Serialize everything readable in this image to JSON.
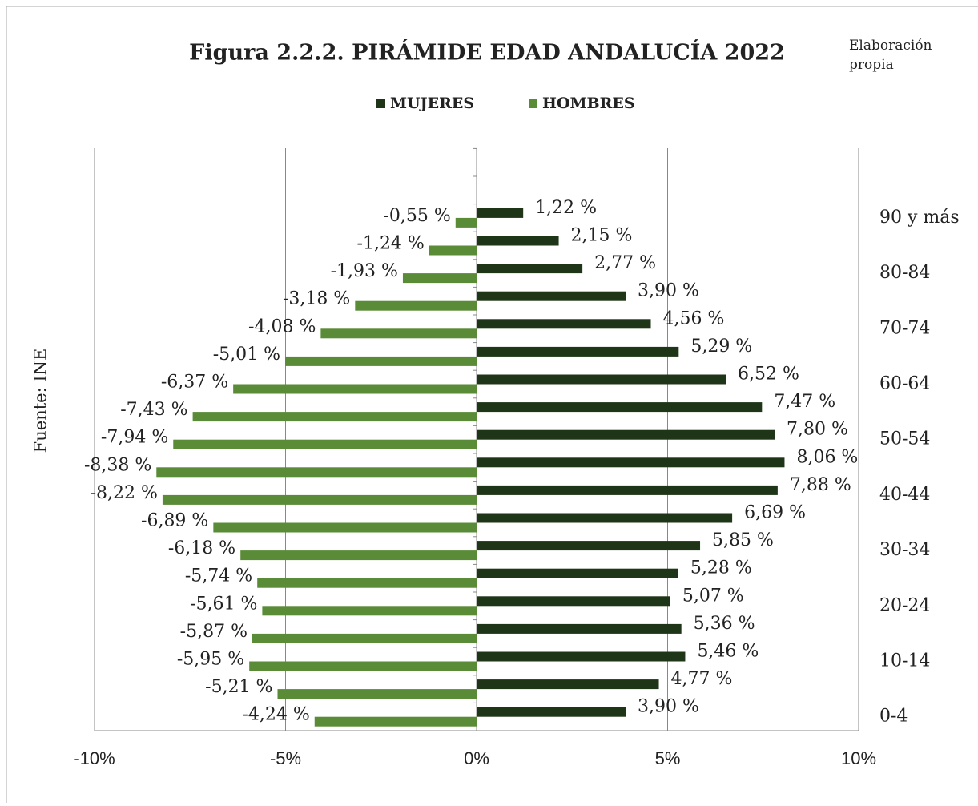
{
  "chart_data": {
    "type": "bar",
    "orientation": "horizontal",
    "title": "Figura 2.2.2. PIRÁMIDE EDAD ANDALUCÍA 2022",
    "note": "Elaboración propia",
    "y_label": "Fuente: INE",
    "categories": [
      "0-4",
      null,
      "10-14",
      null,
      "20-24",
      null,
      "30-34",
      null,
      "40-44",
      null,
      "50-54",
      null,
      "60-64",
      null,
      "70-74",
      null,
      "80-84",
      null,
      "90 y más"
    ],
    "series": [
      {
        "name": "MUJERES",
        "color": "#1f3517",
        "values": [
          3.9,
          4.77,
          5.46,
          5.36,
          5.07,
          5.28,
          5.85,
          6.69,
          7.88,
          8.06,
          7.8,
          7.47,
          6.52,
          5.29,
          4.56,
          3.9,
          2.77,
          2.15,
          1.22
        ],
        "value_labels": [
          "3,90 %",
          "4,77 %",
          "5,46 %",
          "5,36 %",
          "5,07 %",
          "5,28 %",
          "5,85 %",
          "6,69 %",
          "7,88 %",
          "8,06 %",
          "7,80 %",
          "7,47 %",
          "6,52 %",
          "5,29 %",
          "4,56 %",
          "3,90 %",
          "2,77 %",
          "2,15 %",
          "1,22 %"
        ]
      },
      {
        "name": "HOMBRES",
        "color": "#5a8c38",
        "values": [
          -4.24,
          -5.21,
          -5.95,
          -5.87,
          -5.61,
          -5.74,
          -6.18,
          -6.89,
          -8.22,
          -8.38,
          -7.94,
          -7.43,
          -6.37,
          -5.01,
          -4.08,
          -3.18,
          -1.93,
          -1.24,
          -0.55
        ],
        "value_labels": [
          "-4,24 %",
          "-5,21 %",
          "-5,95 %",
          "-5,87 %",
          "-5,61 %",
          "-5,74 %",
          "-6,18 %",
          "-6,89 %",
          "-8,22 %",
          "-8,38 %",
          "-7,94 %",
          "-7,43 %",
          "-6,37 %",
          "-5,01 %",
          "-4,08 %",
          "-3,18 %",
          "-1,93 %",
          "-1,24 %",
          "-0,55 %"
        ]
      }
    ],
    "xlim": [
      -10,
      10
    ],
    "xticks": [
      {
        "value": -10,
        "label": "-10%"
      },
      {
        "value": -5,
        "label": "-5%"
      },
      {
        "value": 0,
        "label": "0%"
      },
      {
        "value": 5,
        "label": "5%"
      },
      {
        "value": 10,
        "label": "10%"
      }
    ],
    "grid": true,
    "legend": "top"
  }
}
